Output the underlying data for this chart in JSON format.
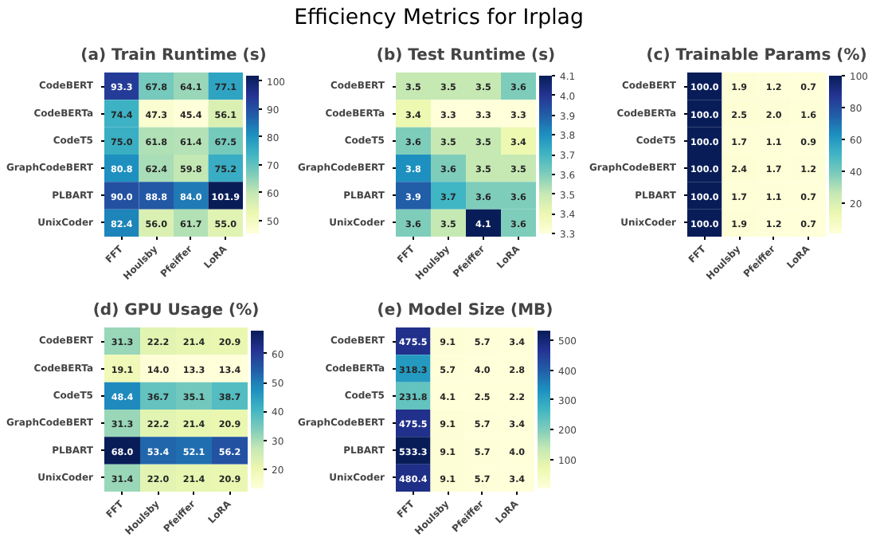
{
  "chart_data": [
    {
      "type": "other",
      "title": "Efficiency Metrics for Irplag"
    },
    {
      "type": "heatmap",
      "title": "(a) Train Runtime (s)",
      "categories": [
        "FFT",
        "Houlsby",
        "Pfeiffer",
        "LoRA"
      ],
      "y_categories": [
        "CodeBERT",
        "CodeBERTa",
        "CodeT5",
        "GraphCodeBERT",
        "PLBART",
        "UnixCoder"
      ],
      "cells": [
        [
          93.3,
          67.8,
          64.1,
          77.1
        ],
        [
          74.4,
          47.3,
          45.4,
          56.1
        ],
        [
          75.0,
          61.8,
          61.4,
          67.5
        ],
        [
          80.8,
          62.4,
          59.8,
          75.2
        ],
        [
          90.0,
          88.8,
          84.0,
          101.9
        ],
        [
          82.4,
          56.0,
          61.7,
          55.0
        ]
      ],
      "cell_labels": [
        [
          "93.3",
          "67.8",
          "64.1",
          "77.1"
        ],
        [
          "74.4",
          "47.3",
          "45.4",
          "56.1"
        ],
        [
          "75.0",
          "61.8",
          "61.4",
          "67.5"
        ],
        [
          "80.8",
          "62.4",
          "59.8",
          "75.2"
        ],
        [
          "90.0",
          "88.8",
          "84.0",
          "101.9"
        ],
        [
          "82.4",
          "56.0",
          "61.7",
          "55.0"
        ]
      ],
      "clim": [
        45.4,
        101.9
      ],
      "cticks": [
        50,
        60,
        70,
        80,
        90,
        100
      ]
    },
    {
      "type": "heatmap",
      "title": "(b) Test Runtime (s)",
      "categories": [
        "FFT",
        "Houlsby",
        "Pfeiffer",
        "LoRA"
      ],
      "y_categories": [
        "CodeBERT",
        "CodeBERTa",
        "CodeT5",
        "GraphCodeBERT",
        "PLBART",
        "UnixCoder"
      ],
      "cells": [
        [
          3.5,
          3.5,
          3.5,
          3.6
        ],
        [
          3.4,
          3.3,
          3.3,
          3.3
        ],
        [
          3.6,
          3.5,
          3.5,
          3.4
        ],
        [
          3.8,
          3.6,
          3.5,
          3.5
        ],
        [
          3.9,
          3.7,
          3.6,
          3.6
        ],
        [
          3.6,
          3.5,
          4.1,
          3.6
        ]
      ],
      "cell_labels": [
        [
          "3.5",
          "3.5",
          "3.5",
          "3.6"
        ],
        [
          "3.4",
          "3.3",
          "3.3",
          "3.3"
        ],
        [
          "3.6",
          "3.5",
          "3.5",
          "3.4"
        ],
        [
          "3.8",
          "3.6",
          "3.5",
          "3.5"
        ],
        [
          "3.9",
          "3.7",
          "3.6",
          "3.6"
        ],
        [
          "3.6",
          "3.5",
          "4.1",
          "3.6"
        ]
      ],
      "clim": [
        3.3,
        4.1
      ],
      "cticks": [
        3.3,
        3.4,
        3.5,
        3.6,
        3.7,
        3.8,
        3.9,
        {
          "value": 4.0,
          "label": "4.0"
        },
        4.1
      ]
    },
    {
      "type": "heatmap",
      "title": "(c) Trainable Params (%)",
      "categories": [
        "FFT",
        "Houlsby",
        "Pfeiffer",
        "LoRA"
      ],
      "y_categories": [
        "CodeBERT",
        "CodeBERTa",
        "CodeT5",
        "GraphCodeBERT",
        "PLBART",
        "UnixCoder"
      ],
      "cells": [
        [
          100.0,
          1.9,
          1.2,
          0.7
        ],
        [
          100.0,
          2.5,
          2.0,
          1.6
        ],
        [
          100.0,
          1.7,
          1.1,
          0.9
        ],
        [
          100.0,
          2.4,
          1.7,
          1.2
        ],
        [
          100.0,
          1.7,
          1.1,
          0.7
        ],
        [
          100.0,
          1.9,
          1.2,
          0.7
        ]
      ],
      "cell_labels": [
        [
          "100.0",
          "1.9",
          "1.2",
          "0.7"
        ],
        [
          "100.0",
          "2.5",
          "2.0",
          "1.6"
        ],
        [
          "100.0",
          "1.7",
          "1.1",
          "0.9"
        ],
        [
          "100.0",
          "2.4",
          "1.7",
          "1.2"
        ],
        [
          "100.0",
          "1.7",
          "1.1",
          "0.7"
        ],
        [
          "100.0",
          "1.9",
          "1.2",
          "0.7"
        ]
      ],
      "clim": [
        0.7,
        100.0
      ],
      "cticks": [
        20,
        40,
        60,
        80,
        100
      ]
    },
    {
      "type": "heatmap",
      "title": "(d) GPU Usage (%)",
      "categories": [
        "FFT",
        "Houlsby",
        "Pfeiffer",
        "LoRA"
      ],
      "y_categories": [
        "CodeBERT",
        "CodeBERTa",
        "CodeT5",
        "GraphCodeBERT",
        "PLBART",
        "UnixCoder"
      ],
      "cells": [
        [
          31.3,
          22.2,
          21.4,
          20.9
        ],
        [
          19.1,
          14.0,
          13.3,
          13.4
        ],
        [
          48.4,
          36.7,
          35.1,
          38.7
        ],
        [
          31.3,
          22.2,
          21.4,
          20.9
        ],
        [
          68.0,
          53.4,
          52.1,
          56.2
        ],
        [
          31.4,
          22.0,
          21.4,
          20.9
        ]
      ],
      "cell_labels": [
        [
          "31.3",
          "22.2",
          "21.4",
          "20.9"
        ],
        [
          "19.1",
          "14.0",
          "13.3",
          "13.4"
        ],
        [
          "48.4",
          "36.7",
          "35.1",
          "38.7"
        ],
        [
          "31.3",
          "22.2",
          "21.4",
          "20.9"
        ],
        [
          "68.0",
          "53.4",
          "52.1",
          "56.2"
        ],
        [
          "31.4",
          "22.0",
          "21.4",
          "20.9"
        ]
      ],
      "clim": [
        13.3,
        68.0
      ],
      "cticks": [
        20,
        30,
        40,
        50,
        60
      ]
    },
    {
      "type": "heatmap",
      "title": "(e) Model Size (MB)",
      "categories": [
        "FFT",
        "Houlsby",
        "Pfeiffer",
        "LoRA"
      ],
      "y_categories": [
        "CodeBERT",
        "CodeBERTa",
        "CodeT5",
        "GraphCodeBERT",
        "PLBART",
        "UnixCoder"
      ],
      "cells": [
        [
          475.5,
          9.1,
          5.7,
          3.4
        ],
        [
          318.3,
          5.7,
          4.0,
          2.8
        ],
        [
          231.8,
          4.1,
          2.5,
          2.2
        ],
        [
          475.5,
          9.1,
          5.7,
          3.4
        ],
        [
          533.3,
          9.1,
          5.7,
          4.0
        ],
        [
          480.4,
          9.1,
          5.7,
          3.4
        ]
      ],
      "cell_labels": [
        [
          "475.5",
          "9.1",
          "5.7",
          "3.4"
        ],
        [
          "318.3",
          "5.7",
          "4.0",
          "2.8"
        ],
        [
          "231.8",
          "4.1",
          "2.5",
          "2.2"
        ],
        [
          "475.5",
          "9.1",
          "5.7",
          "3.4"
        ],
        [
          "533.3",
          "9.1",
          "5.7",
          "4.0"
        ],
        [
          "480.4",
          "9.1",
          "5.7",
          "3.4"
        ]
      ],
      "clim": [
        2.2,
        533.3
      ],
      "cticks": [
        100,
        200,
        300,
        400,
        500
      ]
    }
  ]
}
